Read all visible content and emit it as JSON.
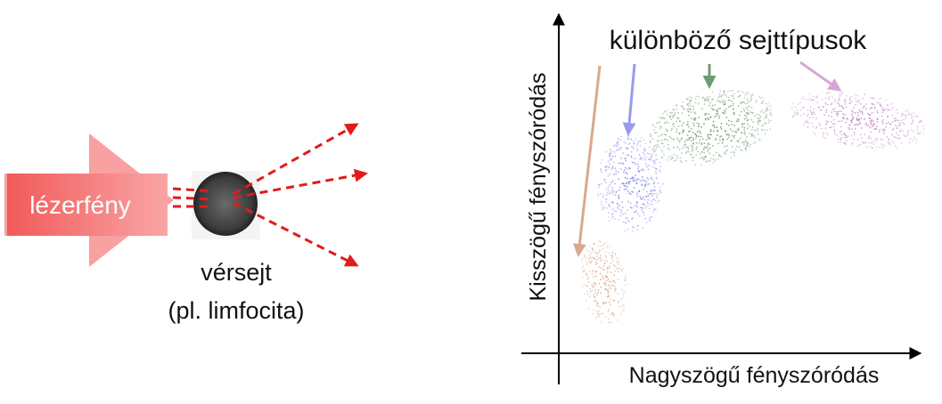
{
  "left": {
    "laser_label": "lézerfény",
    "cell_label": "vérsejt",
    "cell_example": "(pl. limfocita)"
  },
  "plot": {
    "title": "különböző sejttípusok",
    "y_axis_label": "Kisszögű fényszóródás",
    "x_axis_label": "Nagyszögű fényszóródás"
  }
}
